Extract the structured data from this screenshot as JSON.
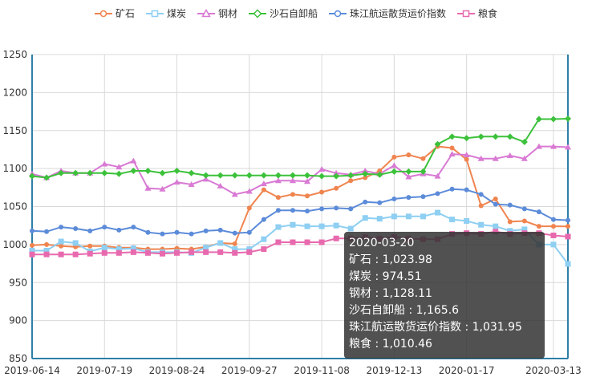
{
  "chart_data": {
    "type": "line",
    "x": [
      "2019-06-14",
      "2019-06-21",
      "2019-06-28",
      "2019-07-05",
      "2019-07-12",
      "2019-07-19",
      "2019-07-26",
      "2019-08-02",
      "2019-08-09",
      "2019-08-16",
      "2019-08-24",
      "2019-08-30",
      "2019-09-06",
      "2019-09-13",
      "2019-09-20",
      "2019-09-27",
      "2019-10-11",
      "2019-10-18",
      "2019-10-25",
      "2019-11-01",
      "2019-11-08",
      "2019-11-15",
      "2019-11-22",
      "2019-11-29",
      "2019-12-06",
      "2019-12-13",
      "2019-12-20",
      "2019-12-27",
      "2020-01-03",
      "2020-01-10",
      "2020-01-17",
      "2020-02-07",
      "2020-02-14",
      "2020-02-21",
      "2020-02-28",
      "2020-03-06",
      "2020-03-13",
      "2020-03-20"
    ],
    "x_tick_labels": [
      "2019-06-14",
      "2019-07-19",
      "2019-08-24",
      "2019-09-27",
      "2019-11-08",
      "2019-12-13",
      "2020-01-17",
      "2020-03-13"
    ],
    "y_ticks": [
      850,
      900,
      950,
      1000,
      1050,
      1100,
      1150,
      1200,
      1250
    ],
    "ylim": [
      850,
      1250
    ],
    "grid": true,
    "legend_position": "top-center",
    "series": [
      {
        "name": "矿石",
        "color": "#f0844f",
        "marker": "circle",
        "values": [
          999,
          1000,
          998,
          997,
          998,
          998,
          996,
          996,
          994,
          994,
          995,
          994,
          997,
          1002,
          1001,
          1048,
          1072,
          1062,
          1066,
          1064,
          1069,
          1074,
          1084,
          1088,
          1097,
          1115,
          1118,
          1113,
          1129,
          1127,
          1112,
          1051,
          1060,
          1030,
          1031,
          1024,
          1024,
          1023.98
        ]
      },
      {
        "name": "煤炭",
        "color": "#8ecff2",
        "marker": "square",
        "values": [
          992,
          992,
          1004,
          1002,
          991,
          996,
          994,
          995,
          990,
          990,
          990,
          989,
          996,
          1002,
          994,
          994,
          1007,
          1023,
          1026,
          1024,
          1024,
          1025,
          1021,
          1035,
          1034,
          1037,
          1037,
          1037,
          1042,
          1033,
          1031,
          1026,
          1024,
          1018,
          1020,
          1000,
          1000,
          974.51
        ]
      },
      {
        "name": "钢材",
        "color": "#d97ad4",
        "marker": "triangle",
        "values": [
          1093,
          1088,
          1097,
          1094,
          1094,
          1106,
          1102,
          1110,
          1074,
          1073,
          1082,
          1079,
          1086,
          1077,
          1066,
          1070,
          1080,
          1084,
          1084,
          1083,
          1099,
          1094,
          1092,
          1097,
          1093,
          1104,
          1089,
          1093,
          1090,
          1119,
          1118,
          1113,
          1113,
          1117,
          1113,
          1129,
          1129,
          1128.11
        ]
      },
      {
        "name": "沙石自卸船",
        "color": "#3cc13b",
        "marker": "diamond",
        "values": [
          1090,
          1088,
          1094,
          1094,
          1094,
          1094,
          1093,
          1097,
          1097,
          1094,
          1097,
          1094,
          1091,
          1091,
          1091,
          1091,
          1091,
          1091,
          1091,
          1091,
          1090,
          1090,
          1091,
          1093,
          1092,
          1096,
          1096,
          1096,
          1132,
          1142,
          1140,
          1142,
          1142,
          1142,
          1135,
          1165,
          1165,
          1165.6
        ]
      },
      {
        "name": "珠江航运散货运价指数",
        "color": "#5b8bd9",
        "marker": "circle",
        "values": [
          1018,
          1017,
          1023,
          1021,
          1018,
          1023,
          1019,
          1023,
          1016,
          1014,
          1016,
          1014,
          1018,
          1019,
          1015,
          1016,
          1033,
          1045,
          1045,
          1044,
          1047,
          1048,
          1047,
          1056,
          1055,
          1060,
          1062,
          1063,
          1067,
          1073,
          1072,
          1066,
          1053,
          1052,
          1047,
          1043,
          1033,
          1031.95
        ]
      },
      {
        "name": "粮食",
        "color": "#e86aae",
        "marker": "square",
        "values": [
          987,
          987,
          987,
          987,
          988,
          989,
          989,
          990,
          989,
          988,
          989,
          990,
          990,
          990,
          989,
          990,
          994,
          1003,
          1003,
          1003,
          1003,
          1008,
          1008,
          1010,
          1008,
          1010,
          1008,
          1007,
          1007,
          1014,
          1015,
          1014,
          1017,
          1014,
          1015,
          1015,
          1012,
          1010.46
        ]
      }
    ]
  },
  "tooltip": {
    "date": "2020-03-20",
    "rows": [
      {
        "label": "矿石 : 1,023.98"
      },
      {
        "label": "煤炭 : 974.51"
      },
      {
        "label": "钢材 : 1,128.11"
      },
      {
        "label": "沙石自卸船 : 1,165.6"
      },
      {
        "label": "珠江航运散货运价指数 : 1,031.95"
      },
      {
        "label": "粮食 : 1,010.46"
      }
    ]
  }
}
